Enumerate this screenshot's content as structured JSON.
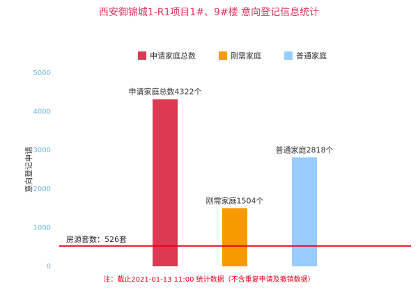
{
  "chart_data": {
    "type": "bar",
    "title": "西安御锦城1-R1项目1#、9#楼 意向登记信息统计",
    "y_label": "意向登记申请",
    "categories": [
      null,
      null,
      null
    ],
    "series": [
      {
        "name": "申请家庭总数",
        "color": "#dc3a52",
        "values": [
          4322,
          null,
          null
        ],
        "value_labels": [
          "申请家庭总数4322个",
          null,
          null
        ]
      },
      {
        "name": "刚需家庭",
        "color": "#f59b00",
        "values": [
          null,
          1504,
          null
        ],
        "value_labels": [
          null,
          "刚需家庭1504个",
          null
        ]
      },
      {
        "name": "普通家庭",
        "color": "#99ccff",
        "values": [
          null,
          null,
          2818
        ],
        "value_labels": [
          null,
          null,
          "普通家庭2818个"
        ]
      }
    ],
    "ylim": [
      0,
      5000
    ],
    "yticks": [
      0,
      1000,
      2000,
      3000,
      4000,
      5000
    ],
    "grid": false,
    "reference_line": {
      "value": 526,
      "label": "房源套数：526套",
      "color": "#e8001c"
    },
    "note": "注：截止2021-01-13 11:00 统计数据（不含重复申请及撤销数据）"
  }
}
